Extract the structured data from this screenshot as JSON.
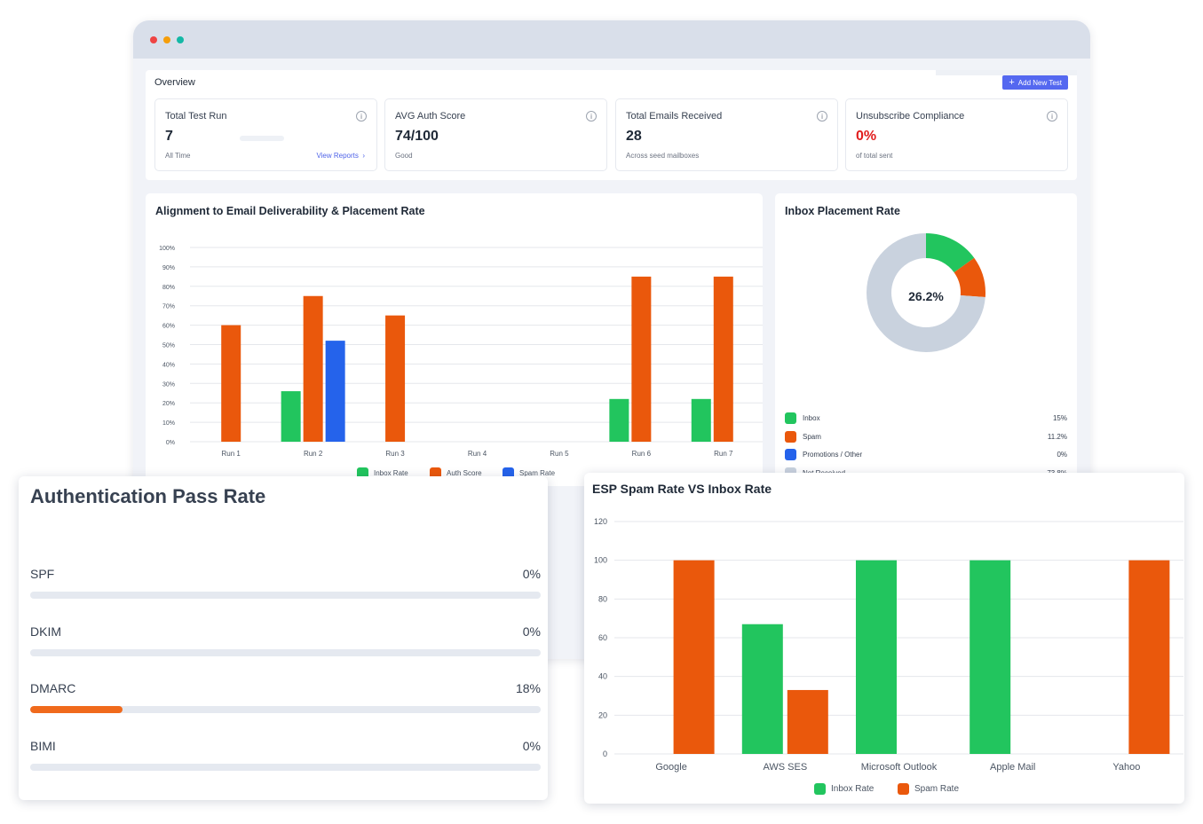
{
  "overview": {
    "title": "Overview",
    "add_button": "Add New Test",
    "stats": [
      {
        "label": "Total Test Run",
        "value": "7",
        "sub": "All Time",
        "link": "View Reports"
      },
      {
        "label": "AVG Auth Score",
        "value": "74/100",
        "sub": "Good"
      },
      {
        "label": "Total Emails Received",
        "value": "28",
        "sub": "Across seed mailboxes"
      },
      {
        "label": "Unsubscribe Compliance",
        "value": "0%",
        "sub": "of total sent"
      }
    ]
  },
  "alignment_panel": {
    "title": "Alignment to Email Deliverability & Placement Rate"
  },
  "inbox_panel": {
    "title": "Inbox Placement Rate",
    "center_label": "26.2%",
    "rows": [
      {
        "label": "Inbox",
        "pct": "15%",
        "color": "#22c55e"
      },
      {
        "label": "Spam",
        "pct": "11.2%",
        "color": "#ea580c"
      },
      {
        "label": "Promotions / Other",
        "pct": "0%",
        "color": "#2563eb"
      },
      {
        "label": "Not Received",
        "pct": "73.8%",
        "color": "#c9d2de"
      }
    ]
  },
  "auth_card": {
    "title": "Authentication Pass Rate",
    "rows": [
      {
        "name": "SPF",
        "pct_label": "0%",
        "value": 0
      },
      {
        "name": "DKIM",
        "pct_label": "0%",
        "value": 0
      },
      {
        "name": "DMARC",
        "pct_label": "18%",
        "value": 18
      },
      {
        "name": "BIMI",
        "pct_label": "0%",
        "value": 0
      }
    ]
  },
  "esp_card": {
    "title": "ESP Spam Rate VS Inbox Rate"
  },
  "chart_data": [
    {
      "type": "bar",
      "title": "Alignment to Email Deliverability & Placement Rate",
      "categories": [
        "Run 1",
        "Run 2",
        "Run 3",
        "Run 4",
        "Run 5",
        "Run 6",
        "Run 7"
      ],
      "series": [
        {
          "name": "Inbox Rate",
          "color": "#22c55e",
          "values": [
            0,
            26,
            0,
            0,
            0,
            22,
            22
          ]
        },
        {
          "name": "Auth Score",
          "color": "#ea580c",
          "values": [
            60,
            75,
            65,
            0,
            0,
            85,
            85
          ]
        },
        {
          "name": "Spam Rate",
          "color": "#2563eb",
          "values": [
            0,
            52,
            0,
            0,
            0,
            0,
            0
          ]
        }
      ],
      "yticks": [
        "0%",
        "10%",
        "20%",
        "30%",
        "40%",
        "50%",
        "60%",
        "70%",
        "80%",
        "90%",
        "100%"
      ],
      "ylim": [
        0,
        100
      ],
      "grid": true,
      "legend": "bottom"
    },
    {
      "type": "pie",
      "title": "Inbox Placement Rate",
      "labels": [
        "Inbox",
        "Spam",
        "Promotions / Other",
        "Not Received"
      ],
      "values": [
        15,
        11.2,
        0,
        73.8
      ],
      "colors": [
        "#22c55e",
        "#ea580c",
        "#2563eb",
        "#c9d2de"
      ]
    },
    {
      "type": "bar",
      "title": "ESP Spam Rate VS Inbox Rate",
      "categories": [
        "Google",
        "AWS SES",
        "Microsoft Outlook",
        "Apple Mail",
        "Yahoo"
      ],
      "series": [
        {
          "name": "Inbox Rate",
          "color": "#22c55e",
          "values": [
            0,
            67,
            100,
            100,
            0
          ]
        },
        {
          "name": "Spam Rate",
          "color": "#ea580c",
          "values": [
            100,
            33,
            0,
            0,
            100
          ]
        }
      ],
      "yticks": [
        "0",
        "20",
        "40",
        "60",
        "80",
        "100",
        "120"
      ],
      "ylim": [
        0,
        120
      ],
      "grid": true,
      "legend": "bottom"
    }
  ]
}
